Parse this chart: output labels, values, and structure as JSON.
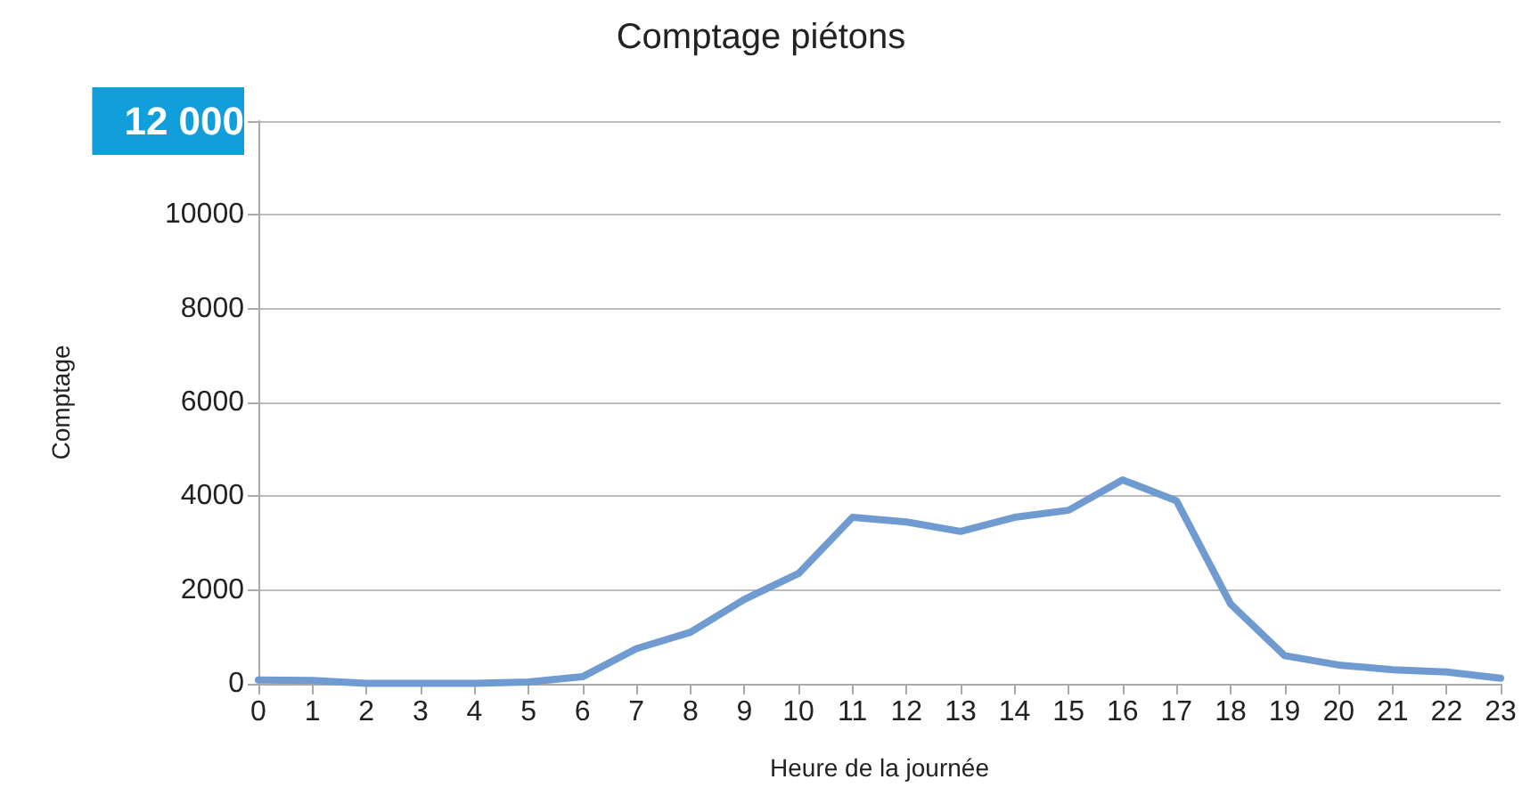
{
  "chart_data": {
    "type": "line",
    "title": "Comptage piétons",
    "xlabel": "Heure de la journée",
    "ylabel": "Comptage",
    "x": [
      0,
      1,
      2,
      3,
      4,
      5,
      6,
      7,
      8,
      9,
      10,
      11,
      12,
      13,
      14,
      15,
      16,
      17,
      18,
      19,
      20,
      21,
      22,
      23
    ],
    "series": [
      {
        "color": "#6f9bd1",
        "values": [
          80,
          70,
          10,
          10,
          10,
          40,
          150,
          750,
          1100,
          1800,
          2350,
          3550,
          3450,
          3250,
          3550,
          3700,
          4350,
          3900,
          1700,
          600,
          400,
          300,
          250,
          120
        ]
      }
    ],
    "xlim": [
      0,
      23
    ],
    "xticks": [
      0,
      1,
      2,
      3,
      4,
      5,
      6,
      7,
      8,
      9,
      10,
      11,
      12,
      13,
      14,
      15,
      16,
      17,
      18,
      19,
      20,
      21,
      22,
      23
    ],
    "ylim": [
      0,
      12000
    ],
    "yticks": [
      0,
      2000,
      4000,
      6000,
      8000,
      10000,
      {
        "value": 12000,
        "label": "12 000"
      }
    ],
    "grid": "y",
    "marker": "none",
    "line_style": "solid"
  }
}
